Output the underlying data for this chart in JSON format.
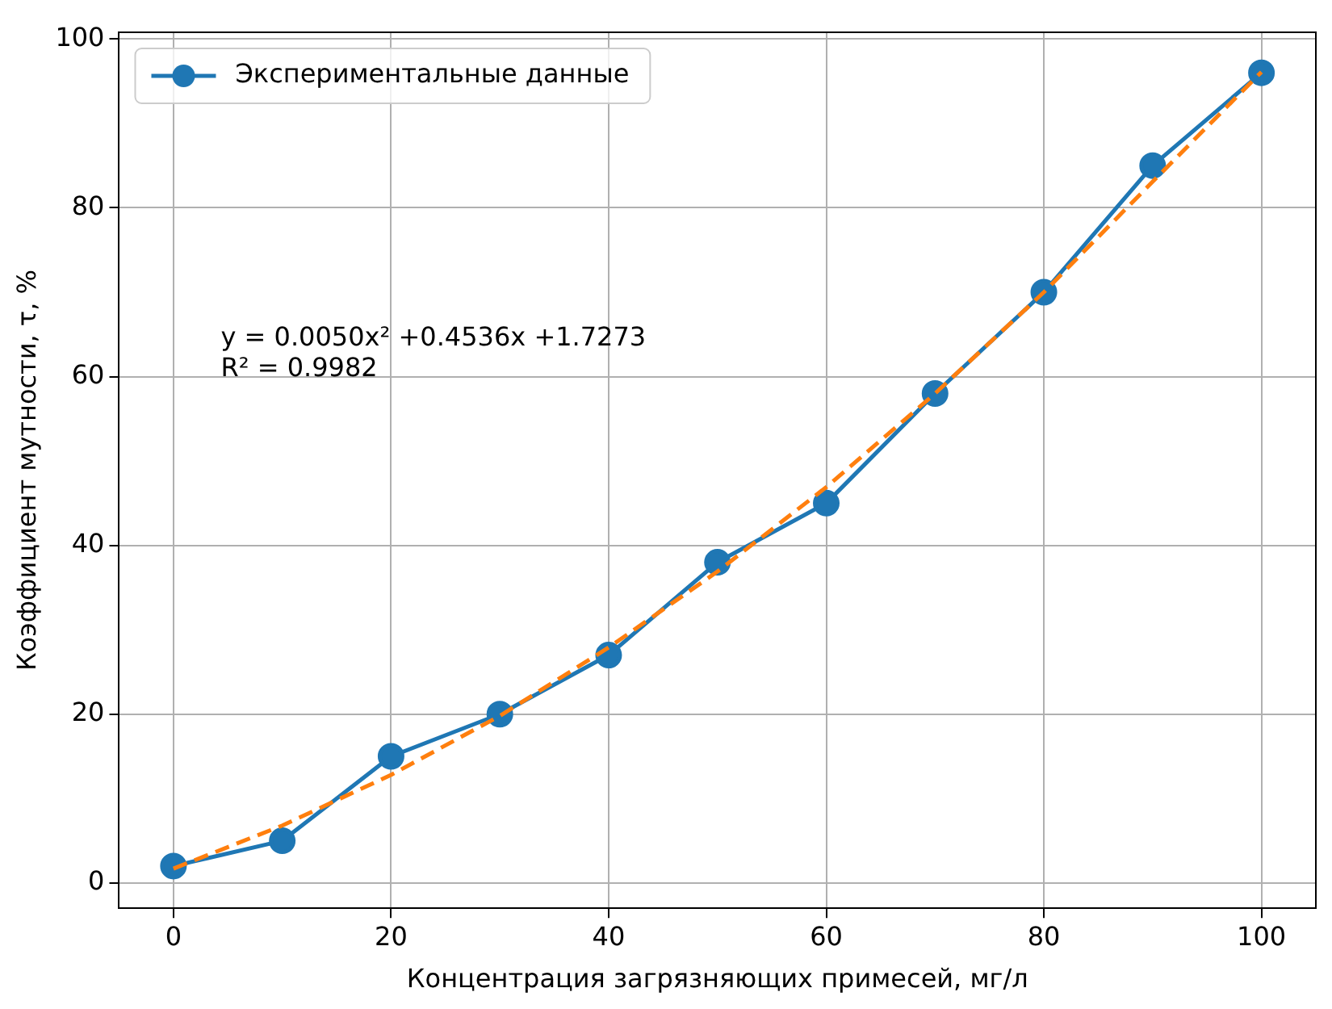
{
  "chart_data": {
    "type": "line",
    "xlabel": "Концентрация загрязняющих примесей, мг/л",
    "ylabel": "Коэффициент мутности, τ, %",
    "x": [
      0,
      10,
      20,
      30,
      40,
      50,
      60,
      70,
      80,
      90,
      100
    ],
    "series": [
      {
        "name": "Экспериментальные данные",
        "color": "#1f77b4",
        "values": [
          2,
          5,
          15,
          20,
          27,
          38,
          45,
          58,
          70,
          85,
          96
        ],
        "marker": "circle",
        "line_style": "solid"
      },
      {
        "type": "line",
        "color": "#ff7f0e",
        "values": [
          1.7,
          6.8,
          12.8,
          19.8,
          27.9,
          36.9,
          46.9,
          58.0,
          70.0,
          83.1,
          96.1
        ],
        "marker": "none",
        "line_style": "dashed"
      }
    ],
    "annotations": [
      "y = 0.0050x² +0.4536x +1.7273",
      "R² = 0.9982"
    ],
    "xlim": [
      -5,
      105
    ],
    "ylim": [
      -3,
      100.8
    ],
    "xticks": [
      0,
      20,
      40,
      60,
      80,
      100
    ],
    "yticks": [
      0,
      20,
      40,
      60,
      80,
      100
    ],
    "grid": true,
    "legend": "top left"
  }
}
